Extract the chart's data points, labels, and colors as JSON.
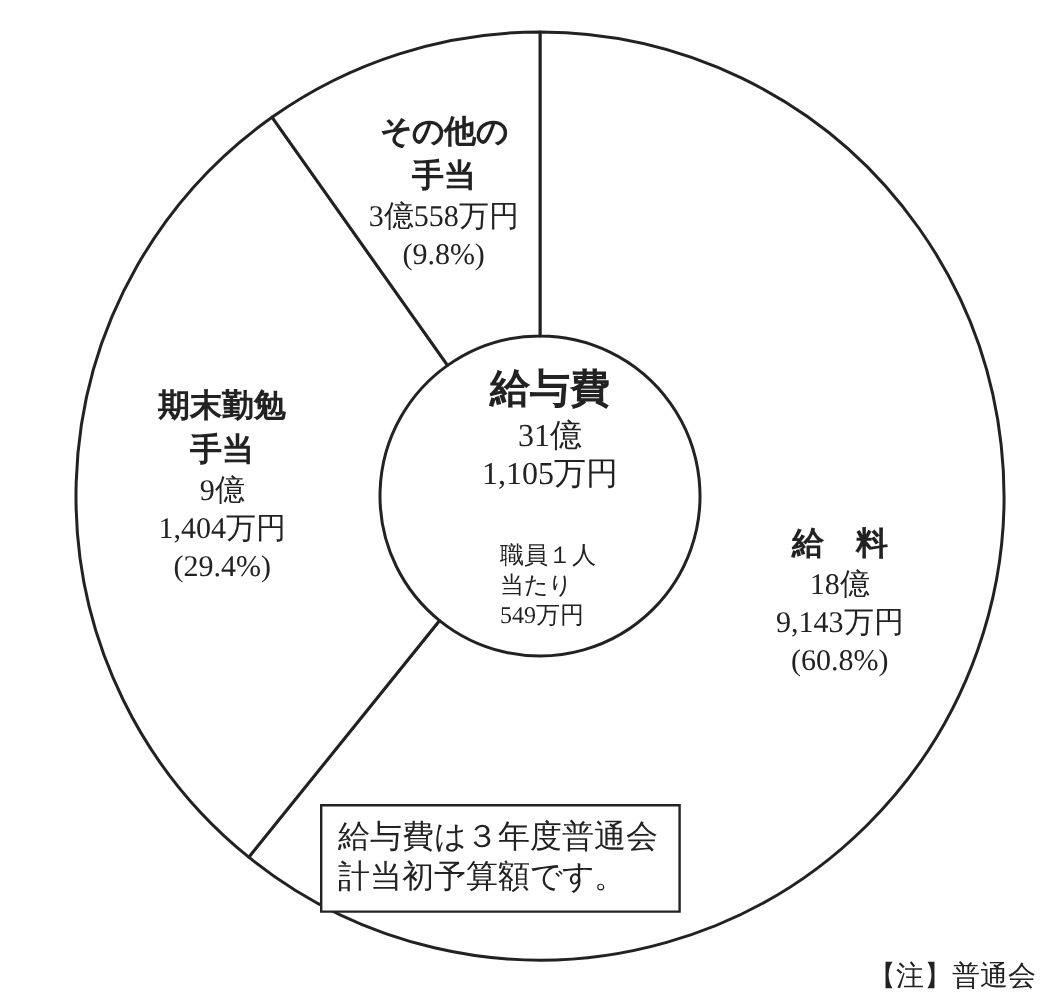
{
  "chart_data": {
    "type": "donut",
    "title": "給与費",
    "subtitle": "31億\n1,105万円",
    "categories": [
      "給　料",
      "期末勤勉手当",
      "その他の手当"
    ],
    "values": [
      60.8,
      29.4,
      9.8
    ],
    "value_labels": [
      "18億\n9,143万円\n(60.8%)",
      "9億\n1,404万円\n(29.4%)",
      "3億558万円\n(9.8%)"
    ],
    "colors": [
      "#ffffff",
      "#ffffff",
      "#ffffff"
    ],
    "legend": false,
    "annotations": [
      "職員１人当たり549万円",
      "給与費は３年度普通会計当初予算額です。",
      "【注】普通会"
    ]
  }
}
